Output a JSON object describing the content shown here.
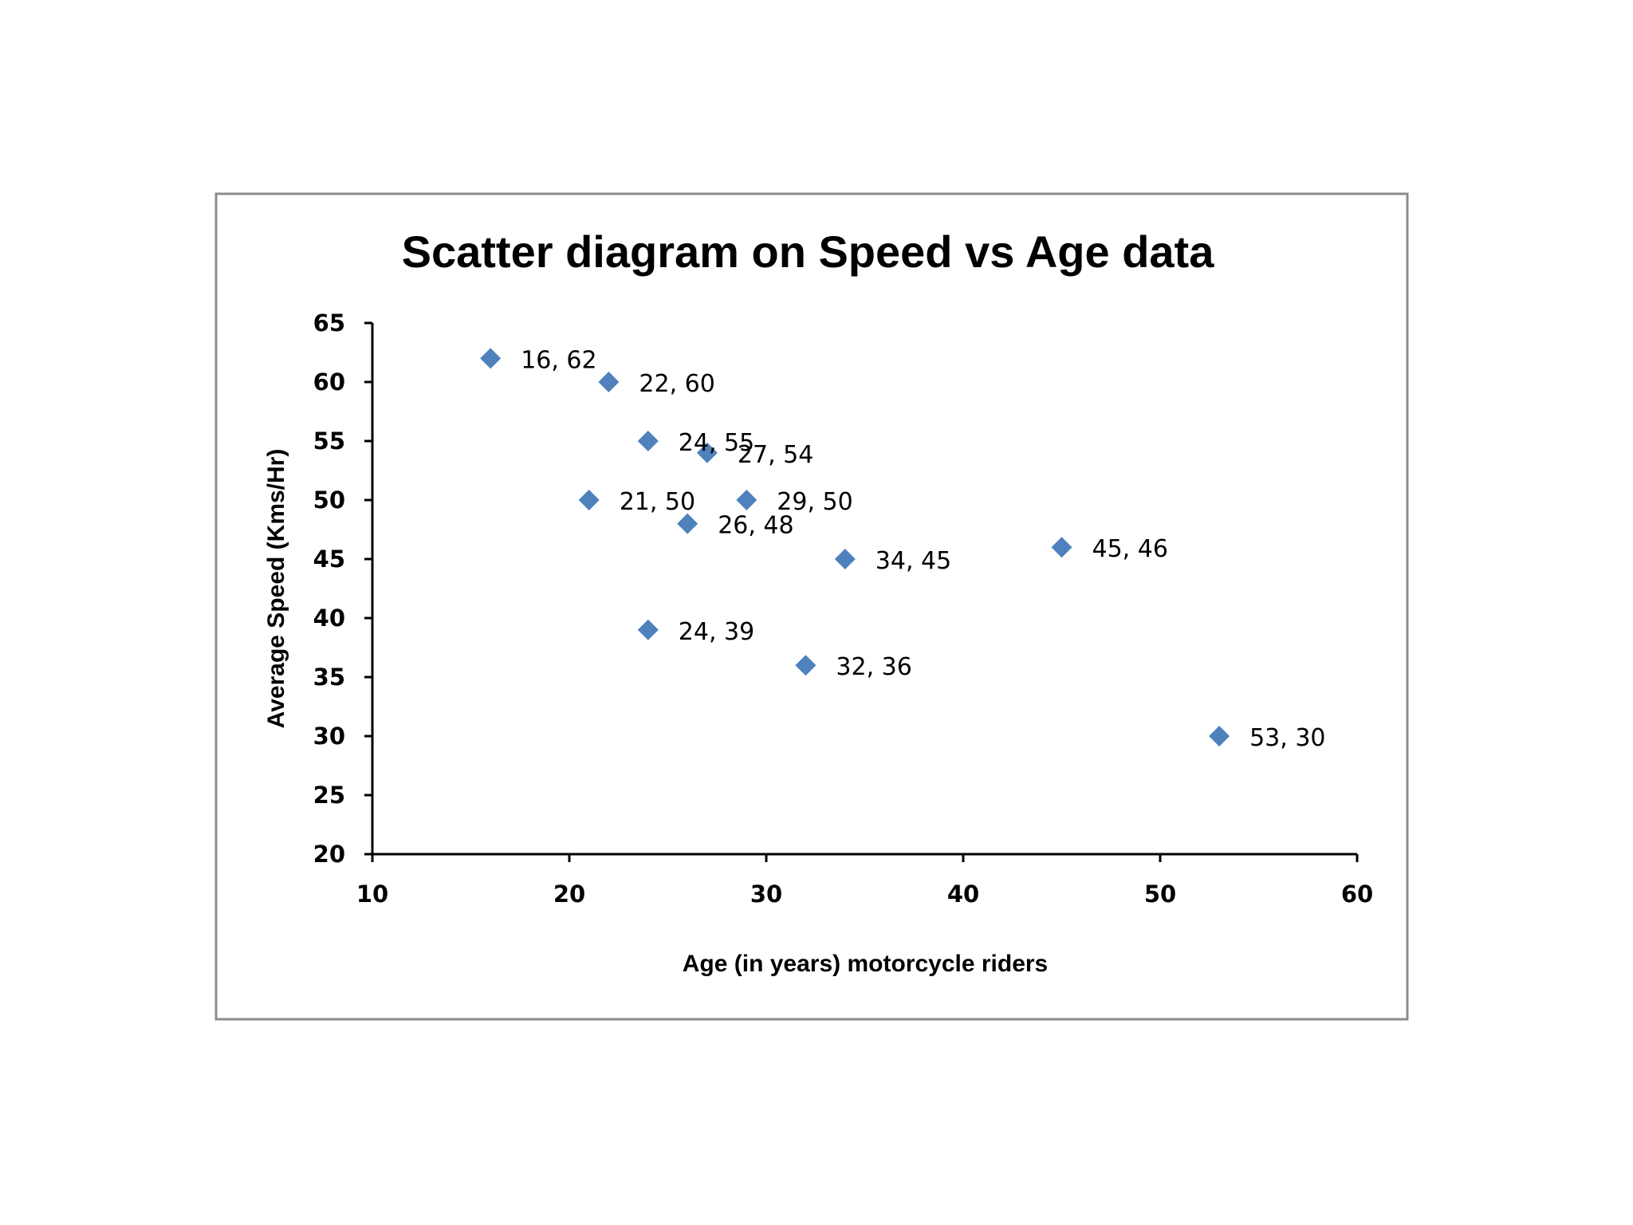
{
  "chart_data": {
    "type": "scatter",
    "title": "Scatter diagram on Speed vs Age data",
    "xlabel": "Age (in years) motorcycle riders",
    "ylabel": "Average Speed (Kms/Hr)",
    "xlim": [
      10,
      60
    ],
    "ylim": [
      20,
      65
    ],
    "xticks": [
      10,
      20,
      30,
      40,
      50,
      60
    ],
    "yticks": [
      20,
      25,
      30,
      35,
      40,
      45,
      50,
      55,
      60,
      65
    ],
    "grid": false,
    "legend": "none",
    "marker": "diamond",
    "marker_color": "#4F81BD",
    "series": [
      {
        "points": [
          {
            "x": 16,
            "y": 62,
            "label": "16, 62"
          },
          {
            "x": 22,
            "y": 60,
            "label": "22, 60"
          },
          {
            "x": 24,
            "y": 55,
            "label": "24, 55"
          },
          {
            "x": 27,
            "y": 54,
            "label": "27, 54"
          },
          {
            "x": 21,
            "y": 50,
            "label": "21, 50"
          },
          {
            "x": 29,
            "y": 50,
            "label": "29, 50"
          },
          {
            "x": 26,
            "y": 48,
            "label": "26, 48"
          },
          {
            "x": 34,
            "y": 45,
            "label": "34, 45"
          },
          {
            "x": 45,
            "y": 46,
            "label": "45, 46"
          },
          {
            "x": 24,
            "y": 39,
            "label": "24, 39"
          },
          {
            "x": 32,
            "y": 36,
            "label": "32, 36"
          },
          {
            "x": 53,
            "y": 30,
            "label": "53, 30"
          }
        ]
      }
    ]
  }
}
